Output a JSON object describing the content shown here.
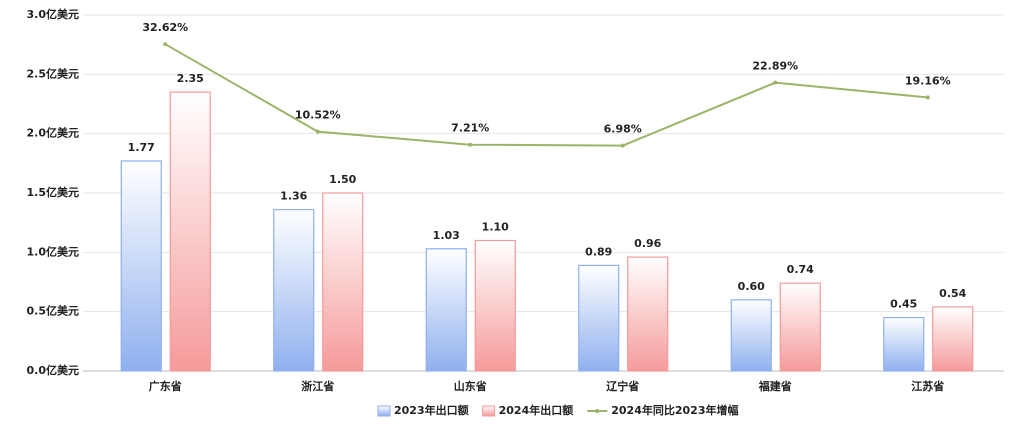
{
  "chart_data": {
    "type": "bar-line",
    "categories": [
      "广东省",
      "浙江省",
      "山东省",
      "辽宁省",
      "福建省",
      "江苏省"
    ],
    "series": [
      {
        "name": "2023年出口额",
        "type": "bar",
        "color": "#8fb0ee",
        "values": [
          1.77,
          1.36,
          1.03,
          0.89,
          0.6,
          0.45
        ],
        "value_labels": [
          "1.77",
          "1.36",
          "1.03",
          "0.89",
          "0.60",
          "0.45"
        ]
      },
      {
        "name": "2024年出口额",
        "type": "bar",
        "color": "#f59a9a",
        "values": [
          2.35,
          1.5,
          1.1,
          0.96,
          0.74,
          0.54
        ],
        "value_labels": [
          "2.35",
          "1.50",
          "1.10",
          "0.96",
          "0.74",
          "0.54"
        ]
      },
      {
        "name": "2024年同比2023年增幅",
        "type": "line",
        "axis": "y2",
        "color": "#9bb467",
        "values": [
          32.62,
          10.52,
          7.21,
          6.98,
          22.89,
          19.16
        ],
        "value_labels": [
          "32.62%",
          "10.52%",
          "7.21%",
          "6.98%",
          "22.89%",
          "19.16%"
        ]
      }
    ],
    "ylim": [
      0,
      3
    ],
    "yticks": [
      {
        "value": 0,
        "label": "0.0亿美元"
      },
      {
        "value": 0.5,
        "label": "0.5亿美元"
      },
      {
        "value": 1,
        "label": "1.0亿美元"
      },
      {
        "value": 1.5,
        "label": "1.5亿美元"
      },
      {
        "value": 2,
        "label": "2.0亿美元"
      },
      {
        "value": 2.5,
        "label": "2.5亿美元"
      },
      {
        "value": 3,
        "label": "3.0亿美元"
      }
    ],
    "y2lim": [
      -50,
      40
    ],
    "grid": true,
    "legend": "bottom"
  }
}
